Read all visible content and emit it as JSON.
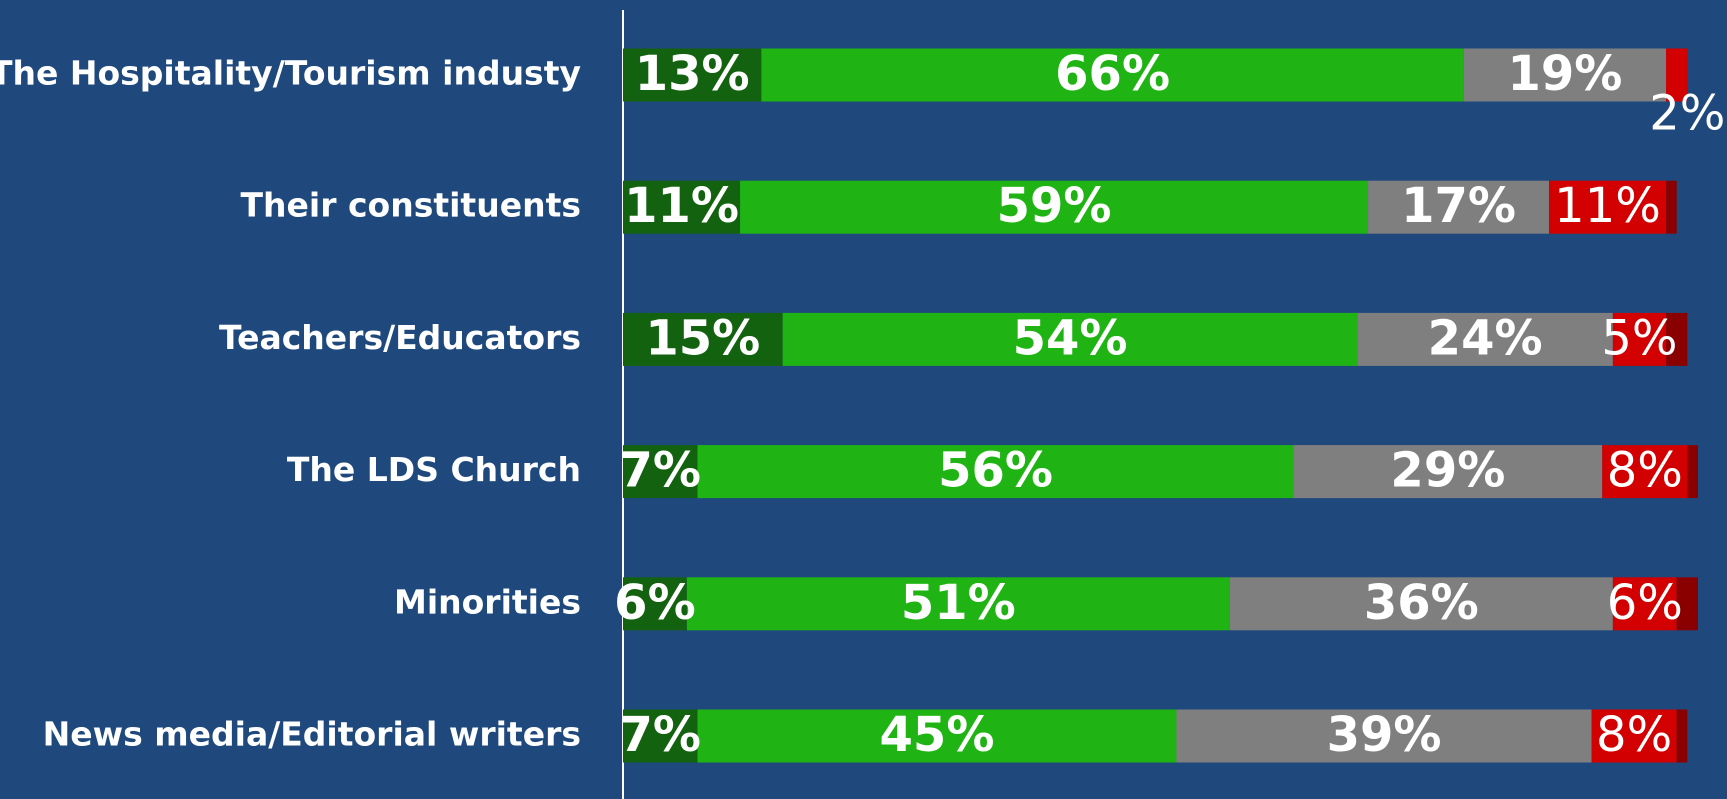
{
  "chart_data": {
    "type": "stacked_barh",
    "categories": [
      "The Hospitality/Tourism industy",
      "Their constituents",
      "Teachers/Educators",
      "The LDS Church",
      "Minorities",
      "News media/Editorial writers"
    ],
    "series": [
      {
        "color": "#13620f",
        "values": [
          13,
          11,
          15,
          7,
          6,
          7
        ],
        "value_labels": [
          "13%",
          "11%",
          "15%",
          "7%",
          "6%",
          "7%"
        ]
      },
      {
        "color": "#1fb414",
        "values": [
          66,
          59,
          54,
          56,
          51,
          45
        ],
        "value_labels": [
          "66%",
          "59%",
          "54%",
          "56%",
          "51%",
          "45%"
        ]
      },
      {
        "color": "#7f7f7f",
        "values": [
          19,
          17,
          24,
          29,
          36,
          39
        ],
        "value_labels": [
          "19%",
          "17%",
          "24%",
          "29%",
          "36%",
          "39%"
        ]
      },
      {
        "color": "#d20000",
        "values": [
          2,
          11,
          5,
          8,
          6,
          8
        ],
        "value_labels": [
          "2%",
          "11%",
          "5%",
          "8%",
          "6%",
          "8%"
        ]
      },
      {
        "color": "#8a0000",
        "values": [
          0,
          1,
          2,
          1,
          2,
          1
        ]
      }
    ],
    "xlim": [
      0,
      101
    ]
  }
}
